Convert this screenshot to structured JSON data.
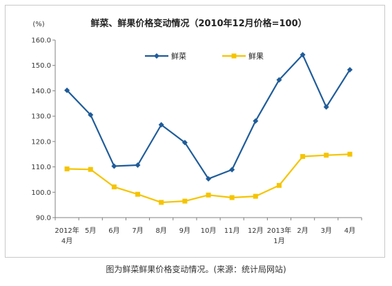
{
  "chart_data": {
    "type": "line",
    "title": "鲜菜、鲜果价格变动情况（2010年12月价格=100）",
    "ylabel": "(%)",
    "xlabel": "",
    "ylim": [
      90,
      160
    ],
    "yticks": [
      "90.0",
      "100.0",
      "110.0",
      "120.0",
      "130.0",
      "140.0",
      "150.0",
      "160.0"
    ],
    "categories": [
      [
        "2012年",
        "4月"
      ],
      [
        "5月"
      ],
      [
        "6月"
      ],
      [
        "7月"
      ],
      [
        "8月"
      ],
      [
        "9月"
      ],
      [
        "10月"
      ],
      [
        "11月"
      ],
      [
        "12月"
      ],
      [
        "2013年",
        "1月"
      ],
      [
        "2月"
      ],
      [
        "3月"
      ],
      [
        "4月"
      ]
    ],
    "series": [
      {
        "name": "鲜菜",
        "color": "#1f5c99",
        "marker": "diamond",
        "values": [
          140.2,
          130.5,
          110.3,
          110.7,
          126.6,
          119.6,
          105.3,
          108.9,
          128.1,
          144.3,
          154.2,
          133.6,
          148.3
        ]
      },
      {
        "name": "鲜果",
        "color": "#f5c400",
        "marker": "square",
        "values": [
          109.2,
          109.0,
          102.1,
          99.2,
          96.0,
          96.5,
          98.9,
          97.9,
          98.4,
          102.7,
          114.1,
          114.6,
          115.0
        ]
      }
    ],
    "grid": false,
    "legend": "top-center"
  },
  "caption": "图为鲜菜鲜果价格变动情况。(来源：统计局网站)"
}
